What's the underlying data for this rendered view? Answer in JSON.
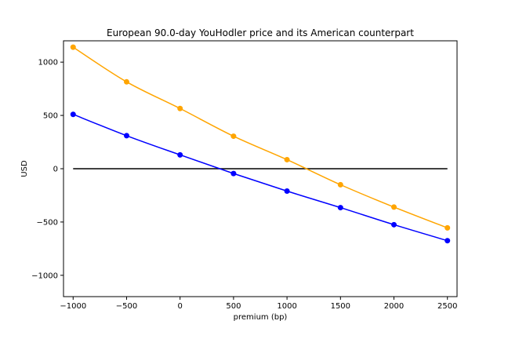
{
  "chart_data": {
    "type": "line",
    "title": "European 90.0-day YouHodler price and its American counterpart",
    "xlabel": "premium (bp)",
    "ylabel": "USD",
    "xlim": [
      -1090,
      2590
    ],
    "ylim": [
      -1200,
      1200
    ],
    "x_ticks": [
      -1000,
      -500,
      0,
      500,
      1000,
      1500,
      2000,
      2500
    ],
    "x_tick_labels": [
      "−1000",
      "−500",
      "0",
      "500",
      "1000",
      "1500",
      "2000",
      "2500"
    ],
    "y_ticks": [
      -1000,
      -500,
      0,
      500,
      1000
    ],
    "y_tick_labels": [
      "−1000",
      "−500",
      "0",
      "500",
      "1000"
    ],
    "grid": false,
    "x": [
      -1000,
      -500,
      0,
      500,
      1000,
      1500,
      2000,
      2500
    ],
    "series": [
      {
        "color": "#0000ff",
        "values": [
          510,
          310,
          130,
          -45,
          -210,
          -365,
          -525,
          -675
        ]
      },
      {
        "color": "#ffa500",
        "values": [
          1140,
          815,
          565,
          305,
          85,
          -150,
          -360,
          -555
        ]
      }
    ],
    "reference_line": {
      "y": 0,
      "x_range": [
        -1000,
        2500
      ],
      "color": "#000000"
    }
  }
}
